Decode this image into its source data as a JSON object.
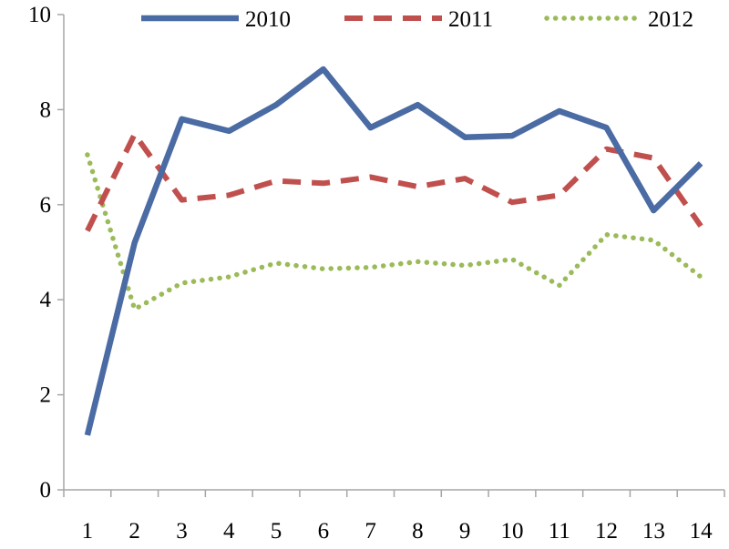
{
  "chart_data": {
    "type": "line",
    "title": "",
    "xlabel": "",
    "ylabel": "",
    "x": [
      1,
      2,
      3,
      4,
      5,
      6,
      7,
      8,
      9,
      10,
      11,
      12,
      13,
      14
    ],
    "x_tick_labels": [
      "1",
      "2",
      "3",
      "4",
      "5",
      "6",
      "7",
      "8",
      "9",
      "10",
      "11",
      "12",
      "13",
      "14"
    ],
    "ylim": [
      0,
      10
    ],
    "y_ticks": [
      0,
      2,
      4,
      6,
      8,
      10
    ],
    "y_tick_labels": [
      "0",
      "2",
      "4",
      "6",
      "8",
      "10"
    ],
    "grid": false,
    "legend_position": "top",
    "series": [
      {
        "name": "2010",
        "color": "#4a6ba3",
        "style": "solid",
        "values": [
          1.15,
          5.2,
          7.8,
          7.55,
          8.1,
          8.85,
          7.62,
          8.1,
          7.42,
          7.45,
          7.97,
          7.62,
          5.88,
          6.87
        ]
      },
      {
        "name": "2011",
        "color": "#c0504d",
        "style": "dashed",
        "values": [
          5.45,
          7.48,
          6.1,
          6.2,
          6.5,
          6.45,
          6.58,
          6.38,
          6.55,
          6.05,
          6.2,
          7.17,
          6.98,
          5.55
        ]
      },
      {
        "name": "2012",
        "color": "#9bbb59",
        "style": "dotted",
        "values": [
          7.05,
          3.8,
          4.35,
          4.48,
          4.77,
          4.65,
          4.68,
          4.8,
          4.72,
          4.85,
          4.3,
          5.37,
          5.25,
          4.48
        ]
      }
    ]
  }
}
